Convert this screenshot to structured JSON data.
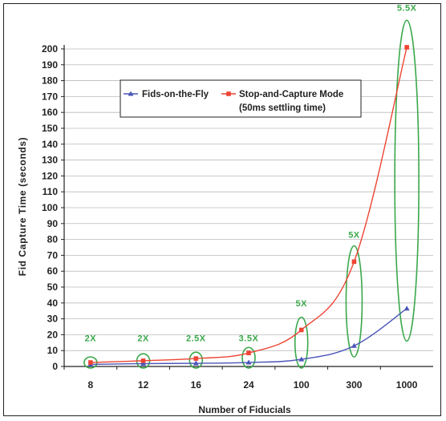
{
  "chart_data": {
    "type": "line",
    "categories": [
      "8",
      "12",
      "16",
      "24",
      "100",
      "300",
      "1000"
    ],
    "xlabel": "Number of Fiducials",
    "ylabel": "Fid Capture Time (seconds)",
    "ylim": [
      0,
      200
    ],
    "yticks": [
      0,
      10,
      20,
      30,
      40,
      50,
      60,
      70,
      80,
      90,
      100,
      110,
      120,
      130,
      140,
      150,
      160,
      170,
      180,
      190,
      200
    ],
    "grid": "horizontal",
    "legend": {
      "placement": "top-center",
      "entries": [
        {
          "label": "Fids-on-the-Fly"
        },
        {
          "label": "Stop-and-Capture Mode",
          "label_line2": "(50ms settling time)"
        }
      ]
    },
    "series": [
      {
        "name": "Fids-on-the-Fly",
        "color": "#4a55b8",
        "marker": "triangle",
        "values": [
          1.3,
          1.8,
          2,
          2.5,
          4.5,
          13,
          36.5
        ]
      },
      {
        "name": "Stop-and-Capture Mode",
        "color": "#ee4433",
        "marker": "square",
        "values": [
          2.5,
          3.6,
          5,
          8.5,
          23,
          66,
          201
        ]
      }
    ],
    "annotations": [
      {
        "category_index": 0,
        "label": "2X",
        "ellipse_range": [
          -1,
          6
        ],
        "label_y": 16
      },
      {
        "category_index": 1,
        "label": "2X",
        "ellipse_range": [
          -1,
          8
        ],
        "label_y": 16
      },
      {
        "category_index": 2,
        "label": "2.5X",
        "ellipse_range": [
          -1,
          9
        ],
        "label_y": 16
      },
      {
        "category_index": 3,
        "label": "3.5X",
        "ellipse_range": [
          -1,
          12
        ],
        "label_y": 16
      },
      {
        "category_index": 4,
        "label": "5X",
        "ellipse_range": [
          -1,
          31
        ],
        "label_y": 38
      },
      {
        "category_index": 5,
        "label": "5X",
        "ellipse_range": [
          6,
          76
        ],
        "label_y": 81
      },
      {
        "category_index": 6,
        "label": "5.5X",
        "ellipse_range": [
          16,
          218
        ],
        "label_y": 224
      }
    ],
    "colors": {
      "annotation": "#3aa84a",
      "axis": "#222222",
      "grid": "#bbbbbb"
    }
  }
}
